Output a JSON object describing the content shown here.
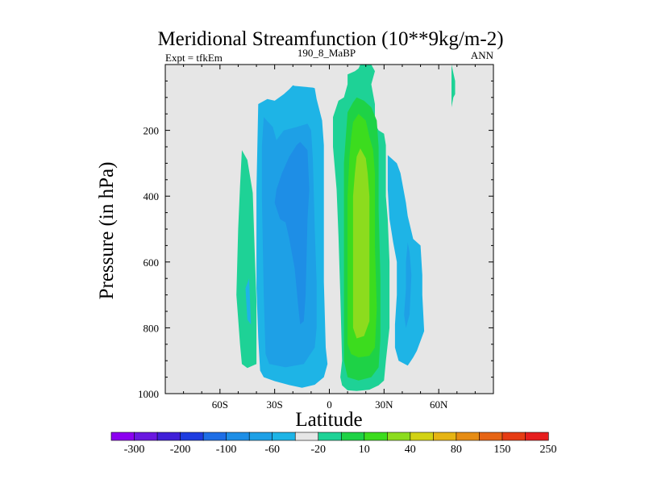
{
  "chart_data": {
    "type": "heatmap",
    "title": "Meridional Streamfunction (10**9kg/m-2)",
    "subtitle_left": "Expt = tfkEm",
    "subtitle_center": "190_8_MaBP",
    "subtitle_right": "ANN",
    "xlabel": "Latitude",
    "ylabel": "Pressure (in hPa)",
    "xlim": [
      -90,
      90
    ],
    "ylim": [
      0,
      1000
    ],
    "y_inverted": true,
    "x_ticks": [
      {
        "value": -60,
        "label": "60S"
      },
      {
        "value": -30,
        "label": "30S"
      },
      {
        "value": 0,
        "label": "0"
      },
      {
        "value": 30,
        "label": "30N"
      },
      {
        "value": 60,
        "label": "60N"
      }
    ],
    "y_ticks": [
      {
        "value": 200,
        "label": "200"
      },
      {
        "value": 400,
        "label": "400"
      },
      {
        "value": 600,
        "label": "600"
      },
      {
        "value": 800,
        "label": "800"
      },
      {
        "value": 1000,
        "label": "1000"
      }
    ],
    "background_color": "#e6e6e6",
    "colorbar": {
      "colors": [
        "#8c00f0",
        "#6a18e0",
        "#4020d8",
        "#1e3ce0",
        "#1e6ee6",
        "#1e8ee6",
        "#1ea0e6",
        "#1eb4e6",
        "#e6e6e6",
        "#1ed296",
        "#1ed246",
        "#3cdc1e",
        "#8cdc1e",
        "#d2d214",
        "#e6b414",
        "#e68c14",
        "#e66414",
        "#e63c14",
        "#e61e1e"
      ],
      "labels": [
        "-300",
        "-200",
        "-100",
        "-60",
        "-20",
        "10",
        "40",
        "80",
        "150",
        "250"
      ]
    },
    "contour_regions": [
      {
        "level": "-20 to -10",
        "color": "#1eb4e6",
        "polygon": [
          [
            -20,
            63
          ],
          [
            -19,
            65
          ],
          [
            -9,
            70
          ],
          [
            -8,
            72
          ],
          [
            -7,
            105
          ],
          [
            -4,
            170
          ],
          [
            -3,
            245
          ],
          [
            -3,
            660
          ],
          [
            -2,
            860
          ],
          [
            -1,
            910
          ],
          [
            -3,
            950
          ],
          [
            -8,
            973
          ],
          [
            -15,
            982
          ],
          [
            -22,
            974
          ],
          [
            -30,
            962
          ],
          [
            -36,
            950
          ],
          [
            -38,
            930
          ],
          [
            -39,
            830
          ],
          [
            -40,
            680
          ],
          [
            -40,
            380
          ],
          [
            -39,
            120
          ],
          [
            -34,
            105
          ],
          [
            -30,
            110
          ],
          [
            -25,
            90
          ],
          [
            -22,
            75
          ]
        ]
      },
      {
        "level": "-60 to -20",
        "color": "#1ea0e6",
        "polygon": [
          [
            -36,
            160
          ],
          [
            -31,
            190
          ],
          [
            -29,
            230
          ],
          [
            -25,
            200
          ],
          [
            -18,
            190
          ],
          [
            -12,
            180
          ],
          [
            -10,
            200
          ],
          [
            -9,
            290
          ],
          [
            -8,
            500
          ],
          [
            -7,
            660
          ],
          [
            -7,
            800
          ],
          [
            -8,
            860
          ],
          [
            -14,
            910
          ],
          [
            -24,
            920
          ],
          [
            -33,
            910
          ],
          [
            -35,
            880
          ],
          [
            -36,
            700
          ],
          [
            -37,
            400
          ],
          [
            -37,
            250
          ]
        ]
      },
      {
        "level": "-100 to -60",
        "color": "#1e8ee6",
        "polygon": [
          [
            -16,
            235
          ],
          [
            -12,
            260
          ],
          [
            -11,
            380
          ],
          [
            -12,
            470
          ],
          [
            -13,
            700
          ],
          [
            -14,
            780
          ],
          [
            -16,
            790
          ],
          [
            -17,
            740
          ],
          [
            -19,
            620
          ],
          [
            -22,
            530
          ],
          [
            -24,
            480
          ],
          [
            -27,
            470
          ],
          [
            -30,
            420
          ],
          [
            -29,
            380
          ],
          [
            -26,
            330
          ],
          [
            -22,
            280
          ],
          [
            -18,
            245
          ]
        ]
      },
      {
        "level": "10 to 20",
        "color": "#1ed296",
        "polygon": [
          [
            -48,
            260
          ],
          [
            -45,
            290
          ],
          [
            -42,
            390
          ],
          [
            -41,
            560
          ],
          [
            -40,
            720
          ],
          [
            -40,
            910
          ],
          [
            -45,
            922
          ],
          [
            -48,
            910
          ],
          [
            -49,
            850
          ],
          [
            -51,
            700
          ],
          [
            -50,
            500
          ],
          [
            -49,
            370
          ]
        ]
      },
      {
        "level": "-20 to -10",
        "color": "#1eb4e6",
        "polygon": [
          [
            -44,
            650
          ],
          [
            -43,
            790
          ],
          [
            -45,
            775
          ],
          [
            -46,
            680
          ]
        ]
      },
      {
        "level": "-20 to -10",
        "color": "#1eb4e6",
        "polygon": [
          [
            32,
            275
          ],
          [
            37,
            300
          ],
          [
            39,
            330
          ],
          [
            42,
            420
          ],
          [
            43,
            460
          ],
          [
            46,
            530
          ],
          [
            48,
            540
          ],
          [
            50,
            550
          ],
          [
            51,
            640
          ],
          [
            51,
            700
          ],
          [
            52,
            810
          ],
          [
            48,
            870
          ],
          [
            46,
            890
          ],
          [
            43,
            915
          ],
          [
            38,
            900
          ],
          [
            36,
            860
          ],
          [
            36,
            790
          ],
          [
            37,
            700
          ],
          [
            37,
            600
          ],
          [
            35,
            540
          ],
          [
            33,
            470
          ],
          [
            32,
            380
          ]
        ]
      },
      {
        "level": "-60 to -20",
        "color": "#1ea0e6",
        "polygon": [
          [
            43,
            540
          ],
          [
            44,
            570
          ],
          [
            45,
            640
          ],
          [
            44,
            760
          ],
          [
            42,
            800
          ],
          [
            41,
            760
          ],
          [
            42,
            680
          ],
          [
            42,
            600
          ]
        ]
      },
      {
        "level": "10 to 40",
        "color": "#1ed296",
        "polygon": [
          [
            23,
            0
          ],
          [
            25,
            20
          ],
          [
            23,
            60
          ],
          [
            25,
            120
          ],
          [
            25,
            180
          ],
          [
            27,
            200
          ],
          [
            30,
            210
          ],
          [
            31,
            245
          ],
          [
            31,
            400
          ],
          [
            32,
            470
          ],
          [
            33,
            600
          ],
          [
            33,
            800
          ],
          [
            31,
            900
          ],
          [
            30,
            960
          ],
          [
            27,
            975
          ],
          [
            22,
            988
          ],
          [
            15,
            992
          ],
          [
            10,
            990
          ],
          [
            7,
            975
          ],
          [
            6,
            950
          ],
          [
            7,
            900
          ],
          [
            6,
            700
          ],
          [
            5,
            520
          ],
          [
            4,
            380
          ],
          [
            2,
            250
          ],
          [
            2,
            160
          ],
          [
            5,
            110
          ],
          [
            8,
            100
          ],
          [
            10,
            60
          ],
          [
            10,
            30
          ],
          [
            14,
            20
          ],
          [
            16,
            12
          ],
          [
            17,
            0
          ]
        ]
      },
      {
        "level": "40 to 60",
        "color": "#1ed246",
        "polygon": [
          [
            15,
            100
          ],
          [
            19,
            110
          ],
          [
            23,
            130
          ],
          [
            26,
            170
          ],
          [
            27,
            250
          ],
          [
            27,
            440
          ],
          [
            28,
            650
          ],
          [
            28,
            830
          ],
          [
            27,
            920
          ],
          [
            23,
            950
          ],
          [
            16,
            960
          ],
          [
            10,
            950
          ],
          [
            8,
            900
          ],
          [
            8,
            650
          ],
          [
            8,
            420
          ],
          [
            8,
            300
          ],
          [
            9,
            220
          ],
          [
            10,
            145
          ],
          [
            13,
            115
          ]
        ]
      },
      {
        "level": "60 to 80",
        "color": "#3cdc1e",
        "polygon": [
          [
            16,
            150
          ],
          [
            20,
            170
          ],
          [
            22,
            220
          ],
          [
            24,
            260
          ],
          [
            25,
            330
          ],
          [
            25,
            550
          ],
          [
            26,
            740
          ],
          [
            25,
            860
          ],
          [
            22,
            885
          ],
          [
            16,
            890
          ],
          [
            12,
            880
          ],
          [
            10,
            850
          ],
          [
            10,
            720
          ],
          [
            10,
            550
          ],
          [
            10,
            400
          ],
          [
            11,
            280
          ],
          [
            12,
            220
          ],
          [
            13,
            175
          ]
        ]
      },
      {
        "level": "80 to 150",
        "color": "#8cdc1e",
        "polygon": [
          [
            17,
            255
          ],
          [
            20,
            285
          ],
          [
            21,
            330
          ],
          [
            22,
            400
          ],
          [
            22,
            560
          ],
          [
            22,
            700
          ],
          [
            22,
            780
          ],
          [
            19,
            825
          ],
          [
            15,
            832
          ],
          [
            13,
            800
          ],
          [
            13,
            650
          ],
          [
            13,
            500
          ],
          [
            13,
            400
          ],
          [
            14,
            330
          ],
          [
            15,
            280
          ]
        ]
      },
      {
        "level": "10 to 20",
        "color": "#1ed296",
        "polygon": [
          [
            67,
            0
          ],
          [
            69,
            50
          ],
          [
            69,
            90
          ],
          [
            68,
            100
          ],
          [
            67,
            130
          ],
          [
            67,
            30
          ]
        ]
      }
    ]
  }
}
